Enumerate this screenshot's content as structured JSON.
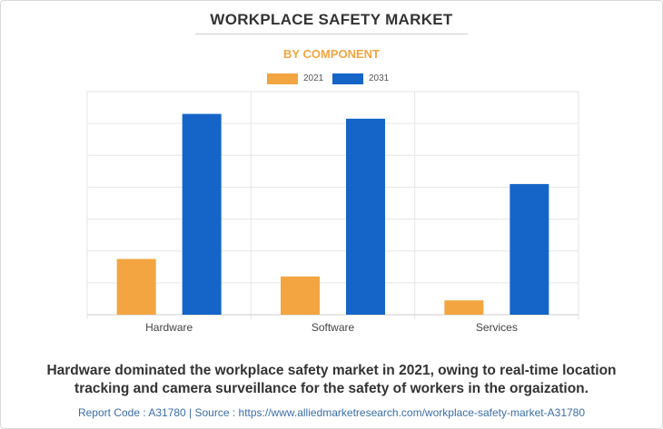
{
  "header": {
    "title": "WORKPLACE SAFETY MARKET",
    "subtitle": "BY COMPONENT"
  },
  "legend": {
    "items": [
      {
        "label": "2021",
        "color": "#f2a541"
      },
      {
        "label": "2031",
        "color": "#1565c8"
      }
    ]
  },
  "chart_data": {
    "type": "bar",
    "title": "WORKPLACE SAFETY MARKET",
    "subtitle": "BY COMPONENT",
    "categories": [
      "Hardware",
      "Software",
      "Services"
    ],
    "series": [
      {
        "name": "2021",
        "values": [
          1.75,
          1.2,
          0.45
        ],
        "color": "#f2a541"
      },
      {
        "name": "2031",
        "values": [
          6.3,
          6.15,
          4.1
        ],
        "color": "#1565c8"
      }
    ],
    "ylim": [
      0,
      7
    ],
    "grid": true,
    "legend_position": "top-center"
  },
  "caption": {
    "line1": "Hardware dominated the workplace safety market in 2021, owing to real-time location",
    "line2": "tracking and camera surveillance for the safety of workers in the orgaization."
  },
  "footer": {
    "text": "Report Code : A31780  |  Source : https://www.alliedmarketresearch.com/workplace-safety-market-A31780"
  }
}
